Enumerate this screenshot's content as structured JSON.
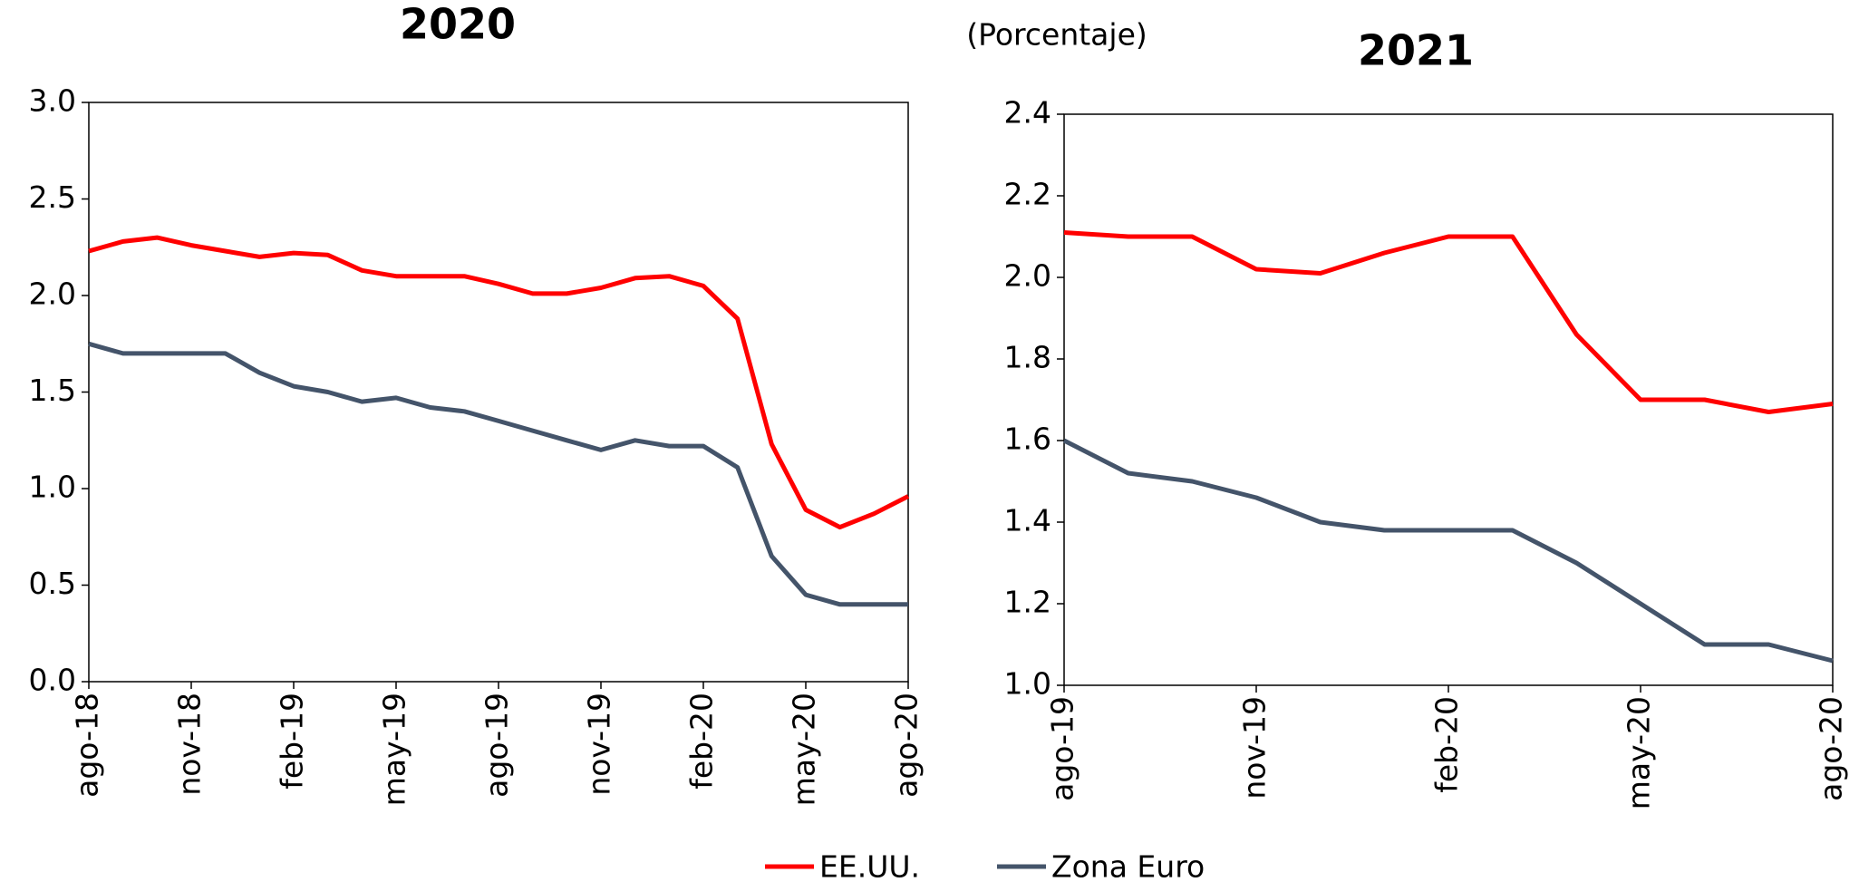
{
  "subtitle": "(Porcentaje)",
  "legend": [
    {
      "name": "EE.UU.",
      "color": "#ff0000"
    },
    {
      "name": "Zona Euro",
      "color": "#44546a"
    }
  ],
  "chart_data": [
    {
      "type": "line",
      "title": "2020",
      "categories": [
        "ago-18",
        null,
        null,
        "nov-18",
        null,
        null,
        "feb-19",
        null,
        null,
        "may-19",
        null,
        null,
        "ago-19",
        null,
        null,
        "nov-19",
        null,
        null,
        "feb-20",
        null,
        null,
        "may-20",
        null,
        null,
        "ago-20"
      ],
      "series": [
        {
          "values": [
            2.23,
            2.28,
            2.3,
            2.26,
            2.23,
            2.2,
            2.22,
            2.21,
            2.13,
            2.1,
            2.1,
            2.1,
            2.06,
            2.01,
            2.01,
            2.04,
            2.09,
            2.1,
            2.05,
            1.88,
            1.23,
            0.89,
            0.8,
            0.87,
            0.96
          ]
        },
        {
          "values": [
            1.75,
            1.7,
            1.7,
            1.7,
            1.7,
            1.6,
            1.53,
            1.5,
            1.45,
            1.47,
            1.42,
            1.4,
            1.35,
            1.3,
            1.25,
            1.2,
            1.25,
            1.22,
            1.22,
            1.11,
            0.65,
            0.45,
            0.4,
            0.4,
            0.4
          ]
        }
      ],
      "ylim": [
        0,
        3
      ],
      "yticks": [
        {
          "value": 0,
          "label": "0.0"
        },
        {
          "value": 0.5,
          "label": "0.5"
        },
        {
          "value": 1,
          "label": "1.0"
        },
        {
          "value": 1.5,
          "label": "1.5"
        },
        {
          "value": 2,
          "label": "2.0"
        },
        {
          "value": 2.5,
          "label": "2.5"
        },
        {
          "value": 3,
          "label": "3.0"
        }
      ]
    },
    {
      "type": "line",
      "title": "2021",
      "categories": [
        "ago-19",
        null,
        null,
        "nov-19",
        null,
        null,
        "feb-20",
        null,
        null,
        "may-20",
        null,
        null,
        "ago-20"
      ],
      "series": [
        {
          "values": [
            2.11,
            2.1,
            2.1,
            2.02,
            2.01,
            2.06,
            2.1,
            2.1,
            1.86,
            1.7,
            1.7,
            1.67,
            1.69
          ]
        },
        {
          "values": [
            1.6,
            1.52,
            1.5,
            1.46,
            1.4,
            1.38,
            1.38,
            1.38,
            1.3,
            1.2,
            1.1,
            1.1,
            1.06
          ]
        }
      ],
      "ylim": [
        1,
        2.4
      ],
      "yticks": [
        {
          "value": 1,
          "label": "1.0"
        },
        {
          "value": 1.2,
          "label": "1.2"
        },
        {
          "value": 1.4,
          "label": "1.4"
        },
        {
          "value": 1.6,
          "label": "1.6"
        },
        {
          "value": 1.8,
          "label": "1.8"
        },
        {
          "value": 2,
          "label": "2.0"
        },
        {
          "value": 2.2,
          "label": "2.2"
        },
        {
          "value": 2.4,
          "label": "2.4"
        }
      ]
    }
  ]
}
